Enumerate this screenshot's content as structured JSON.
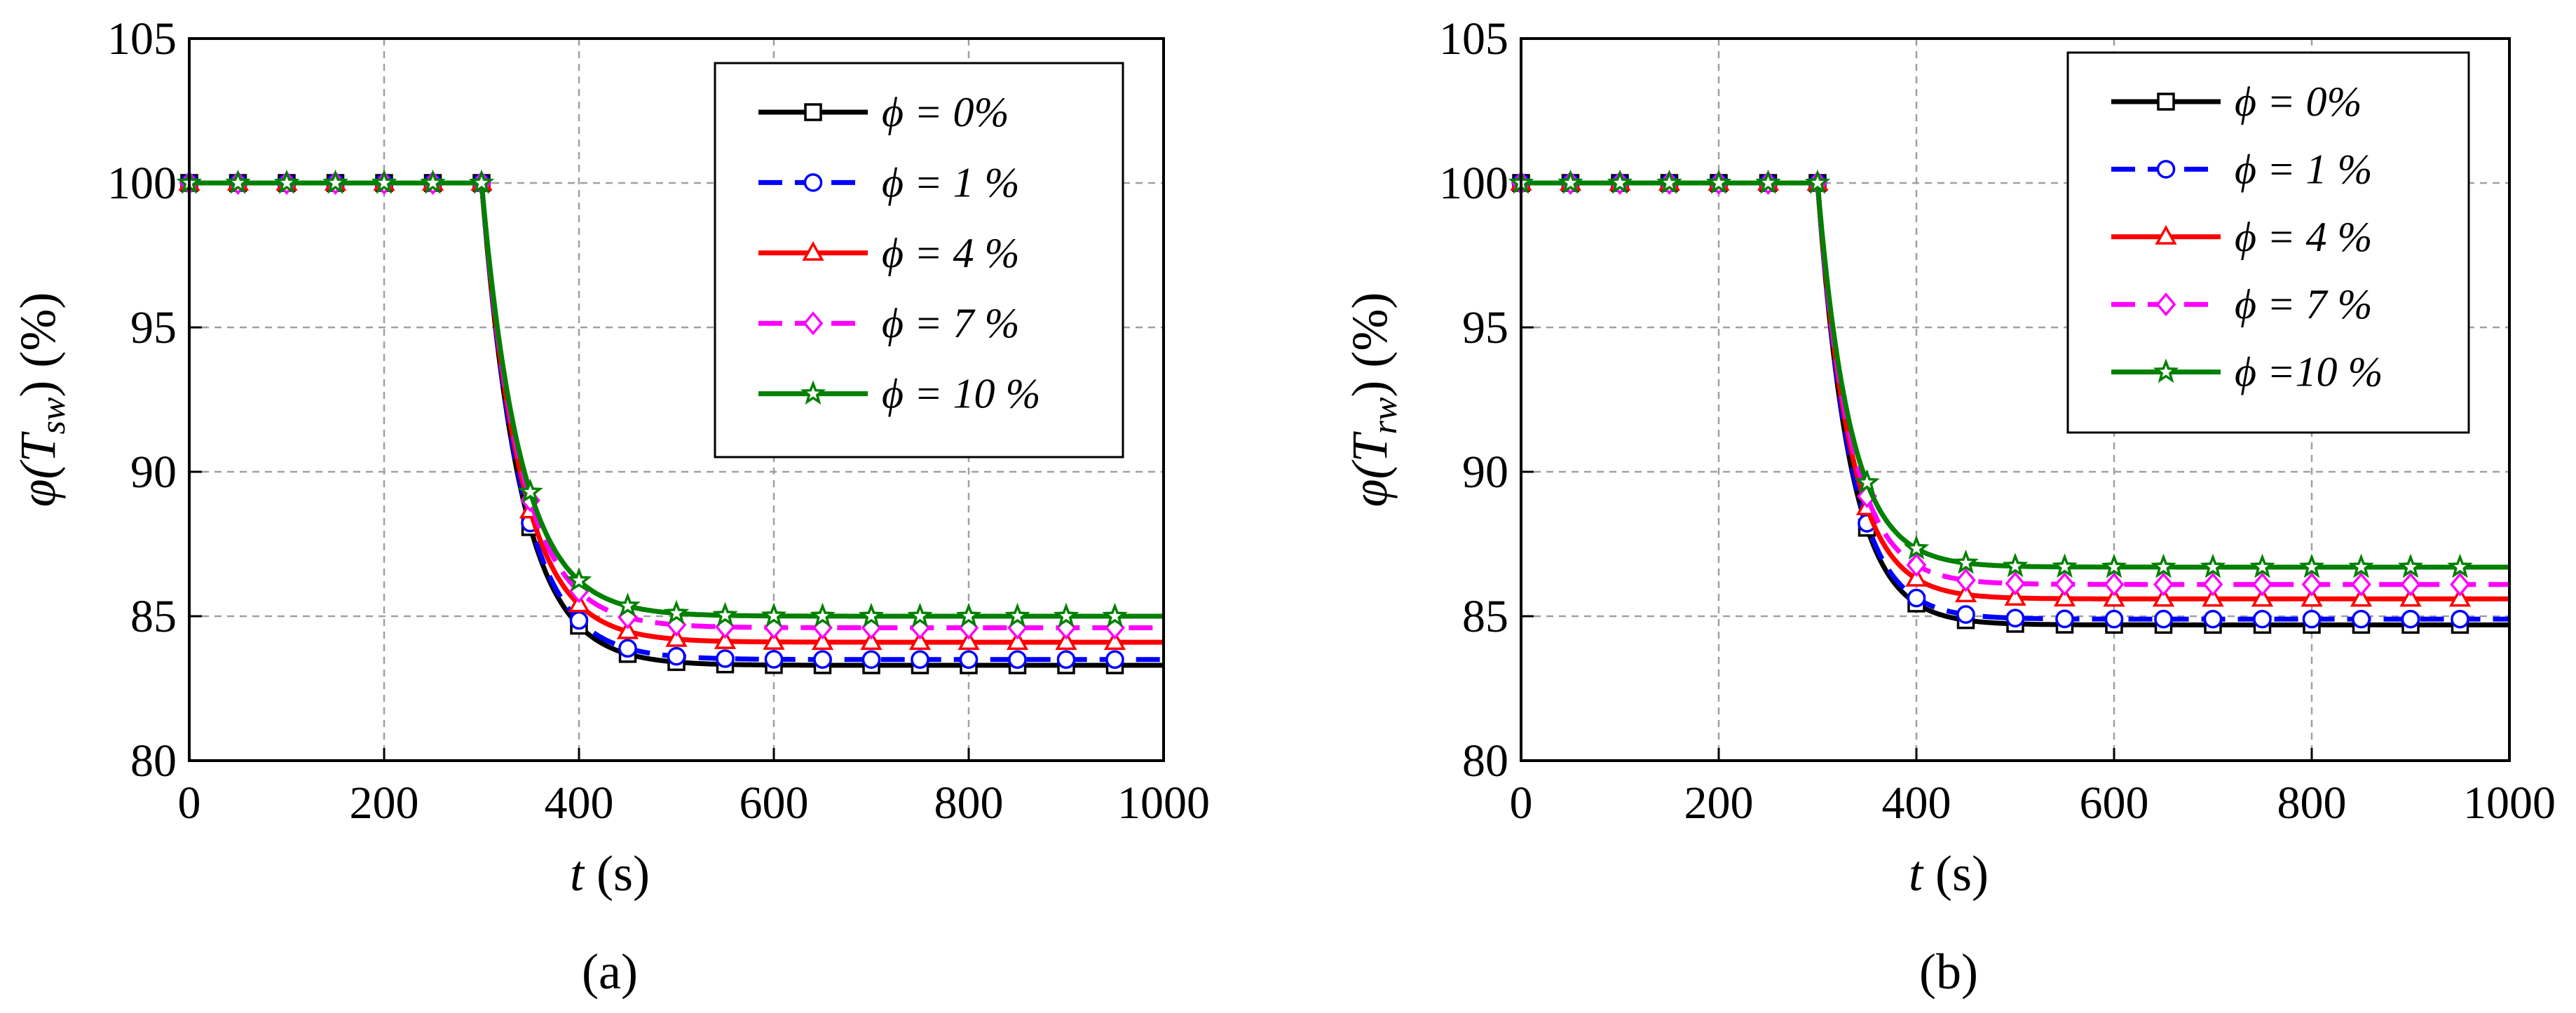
{
  "chart_data": [
    {
      "type": "line",
      "panel_label": "(a)",
      "xlabel_var": "t",
      "xlabel_unit": " (s)",
      "ylabel_func": "φ(",
      "ylabel_var": "T",
      "ylabel_sub": "sw",
      "ylabel_tail": ") (%)",
      "xlim": [
        0,
        1000
      ],
      "ylim": [
        80,
        105
      ],
      "xticks": [
        "0",
        "200",
        "400",
        "600",
        "800",
        "1000"
      ],
      "yticks": [
        "80",
        "85",
        "90",
        "95",
        "100",
        "105"
      ],
      "grid": true,
      "legend_position": "top-right",
      "drop": {
        "t0": 300,
        "tau": 40,
        "marker_start": 0,
        "marker_step": 50
      },
      "series": [
        {
          "name": "ϕ = 0%",
          "color": "#000000",
          "marker": "square",
          "dash": false,
          "final": 83.3
        },
        {
          "name": "ϕ = 1 %",
          "color": "#0000ff",
          "marker": "circle",
          "dash": true,
          "final": 83.5
        },
        {
          "name": "ϕ = 4 %",
          "color": "#ff0000",
          "marker": "triangle",
          "dash": false,
          "final": 84.1
        },
        {
          "name": "ϕ = 7 %",
          "color": "#ff00ff",
          "marker": "diamond",
          "dash": true,
          "final": 84.6
        },
        {
          "name": "ϕ = 10 %",
          "color": "#008000",
          "marker": "star",
          "dash": false,
          "final": 85.0
        }
      ]
    },
    {
      "type": "line",
      "panel_label": "(b)",
      "xlabel_var": "t",
      "xlabel_unit": " (s)",
      "ylabel_func": "φ(",
      "ylabel_var": "T",
      "ylabel_sub": "rw",
      "ylabel_tail": ") (%)",
      "xlim": [
        0,
        1000
      ],
      "ylim": [
        80,
        105
      ],
      "xticks": [
        "0",
        "200",
        "400",
        "600",
        "800",
        "1000"
      ],
      "yticks": [
        "80",
        "85",
        "90",
        "95",
        "100",
        "105"
      ],
      "grid": true,
      "legend_position": "top-right",
      "drop": {
        "t0": 300,
        "tau": 33,
        "marker_start": 0,
        "marker_step": 50
      },
      "series": [
        {
          "name": "ϕ = 0%",
          "color": "#000000",
          "marker": "square",
          "dash": false,
          "final": 84.7
        },
        {
          "name": "ϕ = 1 %",
          "color": "#0000ff",
          "marker": "circle",
          "dash": true,
          "final": 84.9
        },
        {
          "name": "ϕ = 4 %",
          "color": "#ff0000",
          "marker": "triangle",
          "dash": false,
          "final": 85.6
        },
        {
          "name": "ϕ = 7 %",
          "color": "#ff00ff",
          "marker": "diamond",
          "dash": true,
          "final": 86.1
        },
        {
          "name": "ϕ =10 %",
          "color": "#008000",
          "marker": "star",
          "dash": false,
          "final": 86.7
        }
      ]
    }
  ]
}
